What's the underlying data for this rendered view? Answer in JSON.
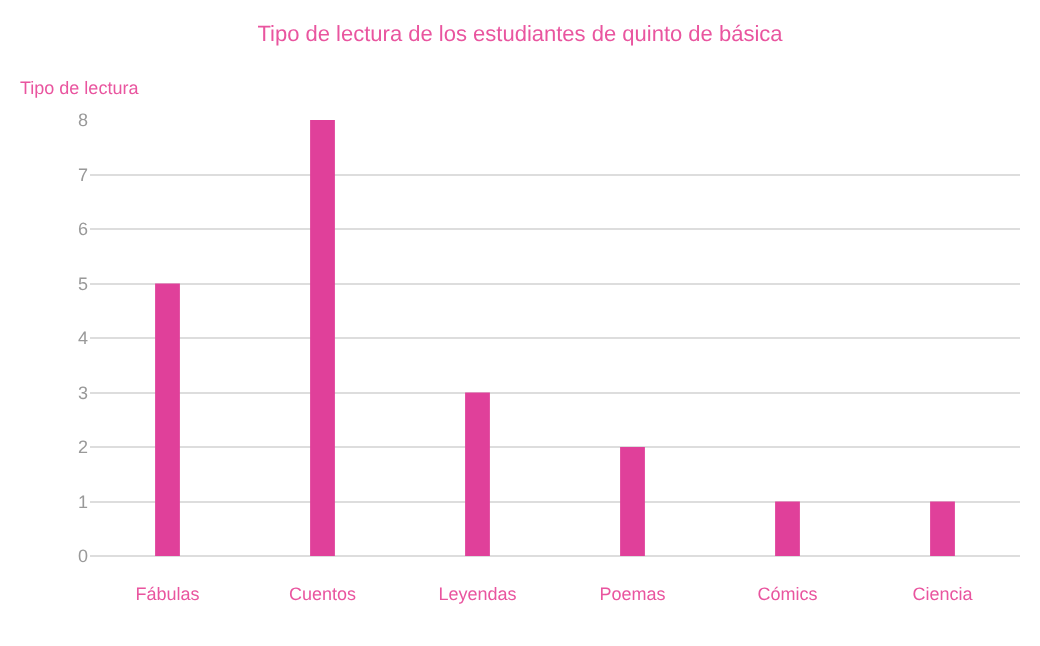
{
  "chart_data": {
    "type": "bar",
    "title": "Tipo de lectura de los estudiantes de quinto de básica",
    "ylabel": "Tipo de lectura",
    "categories": [
      "Fábulas",
      "Cuentos",
      "Leyendas",
      "Poemas",
      "Cómics",
      "Ciencia"
    ],
    "values": [
      5,
      8,
      3,
      2,
      1,
      1
    ],
    "color": "#e0409a",
    "ylim": [
      0,
      8
    ],
    "yticks": [
      0,
      1,
      2,
      3,
      4,
      5,
      6,
      7,
      8
    ],
    "grid": "y"
  }
}
